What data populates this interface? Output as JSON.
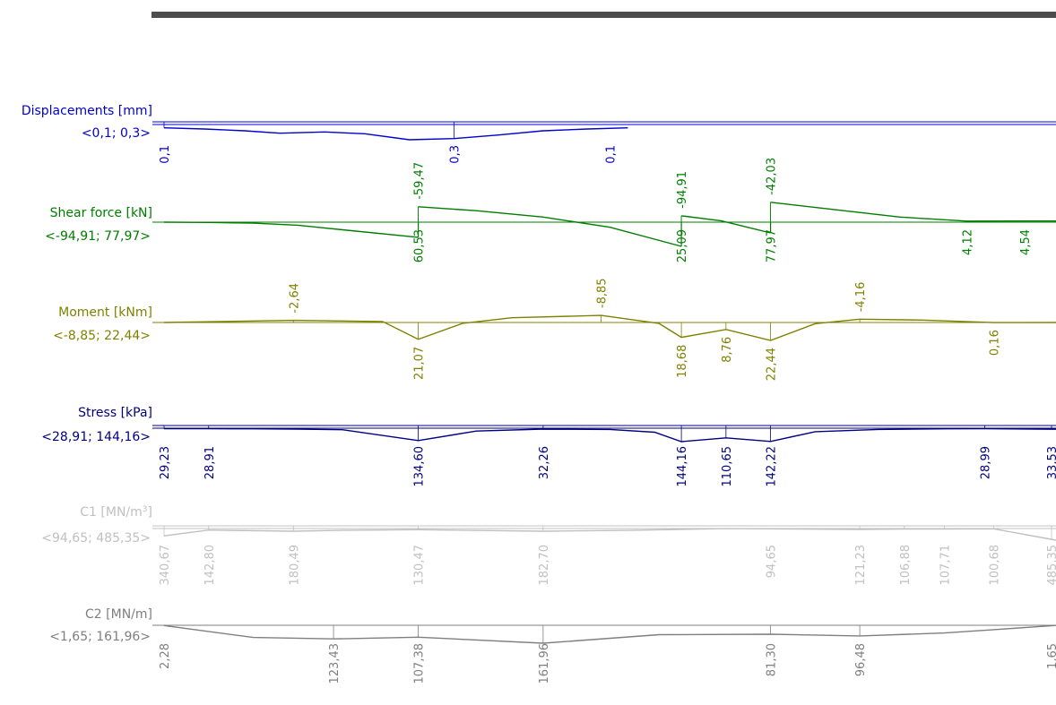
{
  "chart_data": [
    {
      "type": "line",
      "id": "disp",
      "title": "Displacements [mm]",
      "range": "<0,1; 0,3>",
      "color": "#0000cc",
      "x": [
        0,
        0.9,
        1.8,
        2.6,
        3.6,
        4.5,
        5.5,
        6.5,
        7.5,
        8.5,
        9.5,
        10.4
      ],
      "y": [
        0.1,
        0.12,
        0.15,
        0.19,
        0.17,
        0.2,
        0.3,
        0.28,
        0.22,
        0.15,
        0.12,
        0.1
      ],
      "value_labels": [
        {
          "x": 0,
          "text": "0,1"
        },
        {
          "x": 6.5,
          "text": "0,3"
        },
        {
          "x": 10.0,
          "text": "0,1"
        }
      ]
    },
    {
      "type": "line",
      "id": "shear",
      "title": "Shear force [kN]",
      "range": "<-94,91; 77,97>",
      "color": "#007d00",
      "segments": [
        {
          "x": [
            0,
            1.0,
            2.0,
            3.0,
            4.0,
            5.7
          ],
          "y": [
            0,
            -1,
            -4,
            -12,
            -30,
            -59.47
          ]
        },
        {
          "x": [
            5.7,
            7.0,
            8.5,
            10.0,
            11.6
          ],
          "y": [
            60.53,
            45,
            20,
            -20,
            -94.91
          ]
        },
        {
          "x": [
            11.6,
            12.5,
            13.6
          ],
          "y": [
            25.09,
            5,
            -42.03
          ]
        },
        {
          "x": [
            13.6,
            15.0,
            16.5,
            18.0,
            20.0
          ],
          "y": [
            77.97,
            50,
            20,
            4.12,
            4.54
          ]
        }
      ],
      "value_labels": [
        {
          "x": 5.7,
          "text": "-59,47",
          "side": "top"
        },
        {
          "x": 5.7,
          "text": "60,53",
          "side": "bottom"
        },
        {
          "x": 11.6,
          "text": "-94,91",
          "side": "top"
        },
        {
          "x": 11.6,
          "text": "25,09",
          "side": "bottom"
        },
        {
          "x": 13.6,
          "text": "-42,03",
          "side": "top"
        },
        {
          "x": 13.6,
          "text": "77,97",
          "side": "bottom"
        },
        {
          "x": 18.0,
          "text": "4,12",
          "side": "bottom"
        },
        {
          "x": 19.3,
          "text": "4,54",
          "side": "bottom"
        }
      ]
    },
    {
      "type": "line",
      "id": "moment",
      "title": "Moment [kNm]",
      "range": "<-8,85; 22,44>",
      "color": "#808000",
      "x": [
        0,
        2.9,
        4.9,
        5.7,
        6.7,
        7.8,
        9.8,
        11.1,
        11.6,
        12.6,
        13.6,
        14.6,
        15.6,
        17.0,
        18.6,
        20.0
      ],
      "y": [
        0,
        -2.64,
        -1.2,
        21.07,
        1.0,
        -6.0,
        -8.85,
        1.2,
        18.68,
        8.76,
        22.44,
        1.5,
        -4.16,
        -3.0,
        0.16,
        0.0
      ],
      "value_labels": [
        {
          "x": 2.9,
          "text": "-2,64",
          "side": "top"
        },
        {
          "x": 9.8,
          "text": "-8,85",
          "side": "top"
        },
        {
          "x": 15.6,
          "text": "-4,16",
          "side": "top"
        },
        {
          "x": 5.7,
          "text": "21,07",
          "side": "bottom"
        },
        {
          "x": 11.6,
          "text": "18,68",
          "side": "bottom"
        },
        {
          "x": 12.6,
          "text": "8,76",
          "side": "bottom"
        },
        {
          "x": 13.6,
          "text": "22,44",
          "side": "bottom"
        },
        {
          "x": 18.6,
          "text": "0,16",
          "side": "bottom"
        }
      ]
    },
    {
      "type": "line",
      "id": "stress",
      "title": "Stress [kPa]",
      "range": "<28,91; 144,16>",
      "color": "#00007f",
      "x": [
        0,
        1.0,
        2.0,
        3.0,
        4.0,
        5.7,
        7.0,
        8.5,
        10.0,
        11.0,
        11.6,
        12.6,
        13.6,
        14.6,
        16.0,
        17.5,
        18.4,
        20.0
      ],
      "y": [
        29.23,
        28.91,
        30.0,
        33.0,
        38.0,
        134.6,
        50.0,
        32.26,
        35.0,
        60.0,
        144.16,
        110.65,
        142.22,
        55.0,
        35.0,
        30.0,
        28.99,
        33.53
      ],
      "value_labels": [
        {
          "x": 0,
          "text": "29,23"
        },
        {
          "x": 1.0,
          "text": "28,91"
        },
        {
          "x": 5.7,
          "text": "134,60"
        },
        {
          "x": 8.5,
          "text": "32,26"
        },
        {
          "x": 11.6,
          "text": "144,16"
        },
        {
          "x": 12.6,
          "text": "110,65"
        },
        {
          "x": 13.6,
          "text": "142,22"
        },
        {
          "x": 18.4,
          "text": "28,99"
        },
        {
          "x": 19.9,
          "text": "33,53"
        }
      ]
    },
    {
      "type": "line",
      "id": "c1",
      "title": "C1 [MN/m3]",
      "title_base": "C1 [MN/m",
      "title_sup": "3",
      "title_end": "]",
      "range": "<94,65; 485,35>",
      "color": "#c0c0c0",
      "x": [
        0,
        1.0,
        2.9,
        4.0,
        5.7,
        8.5,
        10.5,
        12.6,
        15.6,
        16.6,
        17.5,
        18.6,
        20.0
      ],
      "y": [
        340.67,
        142.8,
        180.49,
        150.0,
        130.47,
        182.7,
        150.0,
        94.65,
        121.23,
        106.88,
        107.71,
        100.68,
        485.35
      ],
      "value_labels": [
        {
          "x": 0,
          "text": "340,67"
        },
        {
          "x": 1.0,
          "text": "142,80"
        },
        {
          "x": 2.9,
          "text": "180,49"
        },
        {
          "x": 5.7,
          "text": "130,47"
        },
        {
          "x": 8.5,
          "text": "182,70"
        },
        {
          "x": 13.6,
          "text": "94,65"
        },
        {
          "x": 15.6,
          "text": "121,23"
        },
        {
          "x": 16.6,
          "text": "106,88"
        },
        {
          "x": 17.5,
          "text": "107,71"
        },
        {
          "x": 18.6,
          "text": "100,68"
        },
        {
          "x": 19.9,
          "text": "485,35"
        }
      ]
    },
    {
      "type": "line",
      "id": "c2",
      "title": "C2 [MN/m]",
      "range": "<1,65; 161,96>",
      "color": "#7f7f7f",
      "x": [
        0,
        2.0,
        3.8,
        5.7,
        8.5,
        11.1,
        13.6,
        15.6,
        17.5,
        18.6,
        20.0
      ],
      "y": [
        2.28,
        110.0,
        123.43,
        107.38,
        161.96,
        85.0,
        81.3,
        96.48,
        70.0,
        40.0,
        1.65
      ],
      "value_labels": [
        {
          "x": 0,
          "text": "2,28"
        },
        {
          "x": 3.8,
          "text": "123,43"
        },
        {
          "x": 5.7,
          "text": "107,38"
        },
        {
          "x": 8.5,
          "text": "161,96"
        },
        {
          "x": 13.6,
          "text": "81,30"
        },
        {
          "x": 15.6,
          "text": "96,48"
        },
        {
          "x": 19.9,
          "text": "1,65"
        }
      ]
    }
  ]
}
